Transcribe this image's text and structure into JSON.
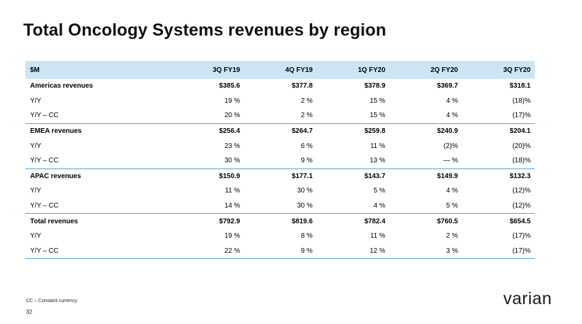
{
  "title": "Total Oncology Systems revenues by region",
  "table": {
    "headers": [
      "$M",
      "3Q FY19",
      "4Q FY19",
      "1Q FY20",
      "2Q FY20",
      "3Q FY20"
    ],
    "rows": [
      {
        "label": "Americas revenues",
        "values": [
          "$385.6",
          "$377.8",
          "$378.9",
          "$369.7",
          "$318.1"
        ]
      },
      {
        "label": "Y/Y",
        "values": [
          "19 %",
          "2 %",
          "15 %",
          "4 %",
          "(18)%"
        ]
      },
      {
        "label": "Y/Y – CC",
        "values": [
          "20 %",
          "2 %",
          "15 %",
          "4 %",
          "(17)%"
        ]
      },
      {
        "label": "EMEA revenues",
        "values": [
          "$256.4",
          "$264.7",
          "$259.8",
          "$240.9",
          "$204.1"
        ]
      },
      {
        "label": "Y/Y",
        "values": [
          "23 %",
          "6 %",
          "11 %",
          "(2)%",
          "(20)%"
        ]
      },
      {
        "label": "Y/Y – CC",
        "values": [
          "30 %",
          "9 %",
          "13 %",
          "— %",
          "(18)%"
        ]
      },
      {
        "label": "APAC revenues",
        "values": [
          "$150.9",
          "$177.1",
          "$143.7",
          "$149.9",
          "$132.3"
        ]
      },
      {
        "label": "Y/Y",
        "values": [
          "11 %",
          "30 %",
          "5 %",
          "4 %",
          "(12)%"
        ]
      },
      {
        "label": "Y/Y – CC",
        "values": [
          "14 %",
          "30 %",
          "4 %",
          "5 %",
          "(12)%"
        ]
      },
      {
        "label": "Total revenues",
        "values": [
          "$792.9",
          "$819.6",
          "$782.4",
          "$760.5",
          "$654.5"
        ]
      },
      {
        "label": "Y/Y",
        "values": [
          "19 %",
          "8 %",
          "11 %",
          "2 %",
          "(17)%"
        ]
      },
      {
        "label": "Y/Y – CC",
        "values": [
          "22 %",
          "9 %",
          "12 %",
          "3 %",
          "(17)%"
        ]
      }
    ]
  },
  "footnote": "CC – Constant currency",
  "page_number": "32",
  "logo": {
    "text": "varian",
    "icon": "varian-logo",
    "color": "#1a1a1a"
  },
  "colors": {
    "header_bg": "#cce5f5",
    "rule": "#4aa3d8"
  }
}
